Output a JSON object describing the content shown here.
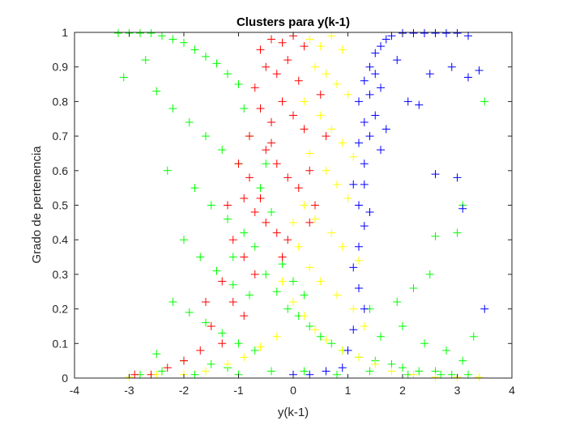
{
  "chart_data": {
    "type": "scatter",
    "title": "Clusters para  y(k-1)",
    "xlabel": "y(k-1)",
    "ylabel": "Grado de pertenencia",
    "xlim": [
      -4,
      4
    ],
    "ylim": [
      0,
      1
    ],
    "xticks": [
      "-4",
      "-3",
      "-2",
      "-1",
      "0",
      "1",
      "2",
      "3",
      "4"
    ],
    "yticks": [
      "0",
      "0.1",
      "0.2",
      "0.3",
      "0.4",
      "0.5",
      "0.6",
      "0.7",
      "0.8",
      "0.9",
      "1"
    ],
    "grid": false,
    "legend": "none",
    "marker": "plus",
    "series": [
      {
        "color": "#00ff00",
        "points": [
          [
            -3.2,
            1.0
          ],
          [
            -3.0,
            1.0
          ],
          [
            -2.8,
            1.0
          ],
          [
            -2.6,
            1.0
          ],
          [
            -2.4,
            0.99
          ],
          [
            -2.2,
            0.98
          ],
          [
            -2.0,
            0.97
          ],
          [
            -1.8,
            0.95
          ],
          [
            -1.6,
            0.93
          ],
          [
            -1.4,
            0.91
          ],
          [
            -1.2,
            0.88
          ],
          [
            -1.0,
            0.85
          ],
          [
            -2.7,
            0.92
          ],
          [
            -3.1,
            0.87
          ],
          [
            -2.5,
            0.83
          ],
          [
            -2.2,
            0.78
          ],
          [
            -1.9,
            0.74
          ],
          [
            -1.6,
            0.7
          ],
          [
            -1.3,
            0.66
          ],
          [
            -1.0,
            0.62
          ],
          [
            -2.3,
            0.6
          ],
          [
            -1.8,
            0.55
          ],
          [
            -1.5,
            0.5
          ],
          [
            -1.2,
            0.46
          ],
          [
            -0.9,
            0.42
          ],
          [
            -2.0,
            0.4
          ],
          [
            -1.7,
            0.35
          ],
          [
            -1.4,
            0.31
          ],
          [
            -1.1,
            0.27
          ],
          [
            -0.8,
            0.24
          ],
          [
            -2.2,
            0.22
          ],
          [
            -1.9,
            0.19
          ],
          [
            -1.6,
            0.16
          ],
          [
            -1.3,
            0.13
          ],
          [
            -1.0,
            0.1
          ],
          [
            -0.7,
            0.08
          ],
          [
            -2.5,
            0.07
          ],
          [
            -2.0,
            0.05
          ],
          [
            -1.5,
            0.04
          ],
          [
            -1.2,
            0.03
          ],
          [
            -0.5,
            0.3
          ],
          [
            -0.3,
            0.25
          ],
          [
            -0.1,
            0.2
          ],
          [
            0.1,
            0.18
          ],
          [
            0.3,
            0.15
          ],
          [
            0.5,
            0.12
          ],
          [
            0.7,
            0.1
          ],
          [
            0.9,
            0.08
          ],
          [
            1.2,
            0.06
          ],
          [
            1.5,
            0.05
          ],
          [
            1.8,
            0.04
          ],
          [
            2.0,
            0.03
          ],
          [
            2.3,
            0.02
          ],
          [
            2.6,
            0.02
          ],
          [
            2.9,
            0.01
          ],
          [
            3.2,
            0.01
          ],
          [
            1.6,
            0.12
          ],
          [
            2.0,
            0.15
          ],
          [
            2.4,
            0.1
          ],
          [
            2.8,
            0.08
          ],
          [
            3.1,
            0.05
          ],
          [
            3.3,
            0.12
          ],
          [
            3.5,
            0.8
          ],
          [
            3.1,
            0.5
          ],
          [
            2.6,
            0.41
          ],
          [
            3.0,
            0.42
          ],
          [
            2.5,
            0.3
          ],
          [
            2.2,
            0.26
          ],
          [
            1.9,
            0.22
          ],
          [
            1.4,
            0.2
          ],
          [
            -0.6,
            0.55
          ],
          [
            -0.4,
            0.48
          ],
          [
            -0.8,
            0.7
          ],
          [
            -0.9,
            0.78
          ],
          [
            -0.5,
            0.62
          ],
          [
            -1.1,
            0.35
          ],
          [
            -0.7,
            0.38
          ],
          [
            -0.2,
            0.33
          ],
          [
            0.0,
            0.28
          ],
          [
            0.2,
            0.24
          ],
          [
            -2.8,
            0.01
          ],
          [
            -2.4,
            0.02
          ],
          [
            -1.8,
            0.01
          ],
          [
            -1.0,
            0.01
          ],
          [
            -0.4,
            0.02
          ],
          [
            0.2,
            0.02
          ],
          [
            0.8,
            0.01
          ],
          [
            1.4,
            0.02
          ],
          [
            2.1,
            0.01
          ],
          [
            2.7,
            0.01
          ]
        ]
      },
      {
        "color": "#ff0000",
        "points": [
          [
            -0.6,
            0.95
          ],
          [
            -0.4,
            0.98
          ],
          [
            -0.2,
            0.97
          ],
          [
            0.0,
            0.99
          ],
          [
            0.2,
            0.96
          ],
          [
            -0.5,
            0.9
          ],
          [
            -0.3,
            0.88
          ],
          [
            -0.1,
            0.92
          ],
          [
            0.1,
            0.86
          ],
          [
            -0.7,
            0.84
          ],
          [
            -0.6,
            0.78
          ],
          [
            -0.4,
            0.74
          ],
          [
            -0.2,
            0.8
          ],
          [
            0.0,
            0.76
          ],
          [
            0.2,
            0.72
          ],
          [
            -0.8,
            0.7
          ],
          [
            -0.5,
            0.66
          ],
          [
            -0.3,
            0.62
          ],
          [
            -0.1,
            0.58
          ],
          [
            0.1,
            0.55
          ],
          [
            -0.9,
            0.52
          ],
          [
            -0.7,
            0.48
          ],
          [
            -0.5,
            0.45
          ],
          [
            -0.3,
            0.42
          ],
          [
            -0.1,
            0.4
          ],
          [
            0.3,
            0.6
          ],
          [
            0.4,
            0.5
          ],
          [
            -1.1,
            0.4
          ],
          [
            -0.9,
            0.35
          ],
          [
            -0.7,
            0.3
          ],
          [
            -1.3,
            0.28
          ],
          [
            -1.1,
            0.22
          ],
          [
            -0.9,
            0.18
          ],
          [
            -1.5,
            0.15
          ],
          [
            -1.3,
            0.1
          ],
          [
            -1.7,
            0.08
          ],
          [
            -2.0,
            0.05
          ],
          [
            -2.3,
            0.03
          ],
          [
            -2.6,
            0.01
          ],
          [
            -2.9,
            0.01
          ],
          [
            -1.0,
            0.62
          ],
          [
            -0.8,
            0.58
          ],
          [
            -0.6,
            0.52
          ],
          [
            -1.2,
            0.5
          ],
          [
            -0.4,
            0.68
          ],
          [
            0.5,
            0.82
          ],
          [
            0.6,
            0.7
          ],
          [
            0.3,
            0.45
          ],
          [
            -0.2,
            0.35
          ],
          [
            -1.6,
            0.22
          ]
        ]
      },
      {
        "color": "#ffff00",
        "points": [
          [
            0.3,
            0.98
          ],
          [
            0.5,
            0.96
          ],
          [
            0.7,
            0.99
          ],
          [
            0.9,
            0.95
          ],
          [
            0.4,
            0.9
          ],
          [
            0.6,
            0.88
          ],
          [
            0.8,
            0.85
          ],
          [
            1.0,
            0.82
          ],
          [
            0.2,
            0.8
          ],
          [
            0.5,
            0.76
          ],
          [
            0.7,
            0.72
          ],
          [
            0.9,
            0.68
          ],
          [
            1.1,
            0.64
          ],
          [
            0.3,
            0.65
          ],
          [
            0.6,
            0.6
          ],
          [
            0.8,
            0.56
          ],
          [
            1.0,
            0.52
          ],
          [
            0.2,
            0.5
          ],
          [
            0.4,
            0.46
          ],
          [
            0.7,
            0.42
          ],
          [
            0.9,
            0.38
          ],
          [
            1.2,
            0.34
          ],
          [
            0.1,
            0.38
          ],
          [
            0.3,
            0.32
          ],
          [
            0.5,
            0.28
          ],
          [
            0.8,
            0.24
          ],
          [
            1.1,
            0.2
          ],
          [
            0.0,
            0.22
          ],
          [
            0.2,
            0.18
          ],
          [
            0.4,
            0.14
          ],
          [
            0.6,
            0.11
          ],
          [
            0.9,
            0.08
          ],
          [
            1.2,
            0.06
          ],
          [
            -0.3,
            0.12
          ],
          [
            -0.6,
            0.09
          ],
          [
            -0.9,
            0.06
          ],
          [
            -1.2,
            0.04
          ],
          [
            -1.6,
            0.02
          ],
          [
            -2.0,
            0.01
          ],
          [
            -2.5,
            0.01
          ],
          [
            -3.0,
            0.0
          ],
          [
            1.5,
            0.04
          ],
          [
            1.8,
            0.02
          ],
          [
            2.2,
            0.01
          ],
          [
            2.6,
            0.0
          ],
          [
            3.0,
            0.0
          ],
          [
            3.4,
            0.0
          ],
          [
            1.3,
            0.15
          ],
          [
            0.0,
            0.45
          ],
          [
            -0.2,
            0.28
          ]
        ]
      },
      {
        "color": "#0000ff",
        "points": [
          [
            1.3,
            0.86
          ],
          [
            1.4,
            0.9
          ],
          [
            1.5,
            0.94
          ],
          [
            1.6,
            0.96
          ],
          [
            1.7,
            0.98
          ],
          [
            1.8,
            0.99
          ],
          [
            2.0,
            1.0
          ],
          [
            2.2,
            1.0
          ],
          [
            2.4,
            1.0
          ],
          [
            2.6,
            1.0
          ],
          [
            2.8,
            1.0
          ],
          [
            3.0,
            1.0
          ],
          [
            3.2,
            0.99
          ],
          [
            1.2,
            0.8
          ],
          [
            1.3,
            0.74
          ],
          [
            1.2,
            0.68
          ],
          [
            1.3,
            0.62
          ],
          [
            1.1,
            0.56
          ],
          [
            1.2,
            0.5
          ],
          [
            1.3,
            0.44
          ],
          [
            1.2,
            0.38
          ],
          [
            1.1,
            0.32
          ],
          [
            1.2,
            0.26
          ],
          [
            1.3,
            0.2
          ],
          [
            1.1,
            0.14
          ],
          [
            1.0,
            0.08
          ],
          [
            1.4,
            0.82
          ],
          [
            1.5,
            0.88
          ],
          [
            1.6,
            0.84
          ],
          [
            1.9,
            0.92
          ],
          [
            2.1,
            0.8
          ],
          [
            2.3,
            0.79
          ],
          [
            2.5,
            0.88
          ],
          [
            2.9,
            0.9
          ],
          [
            3.2,
            0.87
          ],
          [
            3.4,
            0.89
          ],
          [
            2.6,
            0.59
          ],
          [
            3.0,
            0.58
          ],
          [
            3.1,
            0.49
          ],
          [
            3.5,
            0.2
          ],
          [
            1.4,
            0.7
          ],
          [
            1.5,
            0.76
          ],
          [
            1.6,
            0.66
          ],
          [
            1.3,
            0.56
          ],
          [
            1.4,
            0.48
          ],
          [
            0.9,
            0.03
          ],
          [
            0.6,
            0.02
          ],
          [
            0.3,
            0.01
          ],
          [
            0.0,
            0.01
          ],
          [
            1.7,
            0.72
          ]
        ]
      }
    ]
  }
}
